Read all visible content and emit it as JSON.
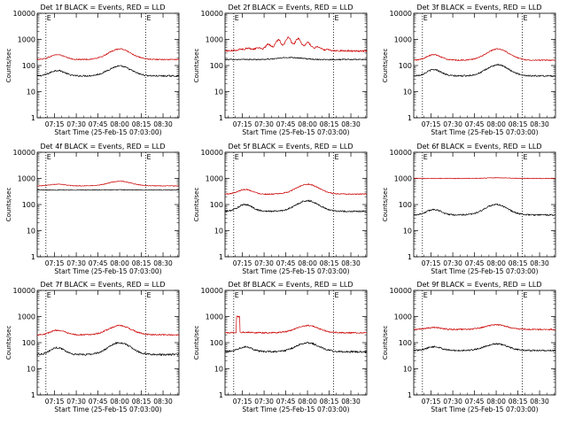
{
  "colors": {
    "events": "#000000",
    "lld": "#cc0000",
    "markers": "#000000"
  },
  "shared": {
    "xlabel": "Start Time (25-Feb-15 07:03:00)",
    "ylabel": "Counts/sec",
    "x_ticks": [
      "07:15",
      "07:30",
      "07:45",
      "08:00",
      "08:15",
      "08:30"
    ],
    "x_tick_values_min": [
      12,
      27,
      42,
      57,
      72,
      87
    ],
    "y_ticks": [
      "1",
      "10",
      "100",
      "1000",
      "10000"
    ],
    "y_tick_values": [
      1,
      10,
      100,
      1000,
      10000
    ],
    "xlim_min": [
      0,
      98
    ],
    "ylim": [
      1,
      10000
    ],
    "marker_label": "E",
    "marker_x_min": [
      6,
      75
    ]
  },
  "chart_data": [
    {
      "type": "line",
      "title": "Det 1f BLACK = Events, RED = LLD",
      "xlabel": "Start Time (25-Feb-15 07:03:00)",
      "ylabel": "Counts/sec",
      "series": [
        {
          "name": "Events",
          "profile": "hump",
          "base": 40,
          "peak": 95,
          "peak_min": 57,
          "early": 65,
          "noise": 0.07
        },
        {
          "name": "LLD",
          "profile": "hump",
          "base": 170,
          "peak": 430,
          "peak_min": 57,
          "early": 260,
          "noise": 0.05
        }
      ]
    },
    {
      "type": "line",
      "title": "Det 2f BLACK = Events, RED = LLD",
      "xlabel": "Start Time (25-Feb-15 07:03:00)",
      "ylabel": "Counts/sec",
      "series": [
        {
          "name": "Events",
          "profile": "flat",
          "base": 170,
          "peak": 230,
          "peak_min": 45,
          "early": 170,
          "noise": 0.05
        },
        {
          "name": "LLD",
          "profile": "bumpy",
          "base": 360,
          "peak": 1200,
          "peak_min": 45,
          "early": 420,
          "noise": 0.08
        }
      ]
    },
    {
      "type": "line",
      "title": "Det 3f BLACK = Events, RED = LLD",
      "xlabel": "Start Time (25-Feb-15 07:03:00)",
      "ylabel": "Counts/sec",
      "series": [
        {
          "name": "Events",
          "profile": "hump",
          "base": 40,
          "peak": 105,
          "peak_min": 58,
          "early": 70,
          "noise": 0.07
        },
        {
          "name": "LLD",
          "profile": "hump",
          "base": 160,
          "peak": 430,
          "peak_min": 58,
          "early": 260,
          "noise": 0.05
        }
      ]
    },
    {
      "type": "line",
      "title": "Det 4f BLACK = Events, RED = LLD",
      "xlabel": "Start Time (25-Feb-15 07:03:00)",
      "ylabel": "Counts/sec",
      "series": [
        {
          "name": "Events",
          "profile": "flat",
          "base": 360,
          "peak": 370,
          "peak_min": 57,
          "early": 360,
          "noise": 0.03
        },
        {
          "name": "LLD",
          "profile": "hump",
          "base": 520,
          "peak": 780,
          "peak_min": 57,
          "early": 600,
          "noise": 0.03
        }
      ]
    },
    {
      "type": "line",
      "title": "Det 5f BLACK = Events, RED = LLD",
      "xlabel": "Start Time (25-Feb-15 07:03:00)",
      "ylabel": "Counts/sec",
      "series": [
        {
          "name": "Events",
          "profile": "hump",
          "base": 55,
          "peak": 140,
          "peak_min": 57,
          "early": 100,
          "noise": 0.07
        },
        {
          "name": "LLD",
          "profile": "hump",
          "base": 250,
          "peak": 600,
          "peak_min": 57,
          "early": 380,
          "noise": 0.05
        }
      ]
    },
    {
      "type": "line",
      "title": "Det 6f BLACK = Events, RED = LLD",
      "xlabel": "Start Time (25-Feb-15 07:03:00)",
      "ylabel": "Counts/sec",
      "series": [
        {
          "name": "Events",
          "profile": "hump",
          "base": 40,
          "peak": 100,
          "peak_min": 57,
          "early": 65,
          "noise": 0.07
        },
        {
          "name": "LLD",
          "profile": "flat",
          "base": 1000,
          "peak": 1100,
          "peak_min": 57,
          "early": 1000,
          "noise": 0.03
        }
      ]
    },
    {
      "type": "line",
      "title": "Det 7f BLACK = Events, RED = LLD",
      "xlabel": "Start Time (25-Feb-15 07:03:00)",
      "ylabel": "Counts/sec",
      "series": [
        {
          "name": "Events",
          "profile": "hump",
          "base": 35,
          "peak": 100,
          "peak_min": 57,
          "early": 65,
          "noise": 0.08
        },
        {
          "name": "LLD",
          "profile": "hump",
          "base": 200,
          "peak": 450,
          "peak_min": 57,
          "early": 300,
          "noise": 0.06
        }
      ]
    },
    {
      "type": "line",
      "title": "Det 8f BLACK = Events, RED = LLD",
      "xlabel": "Start Time (25-Feb-15 07:03:00)",
      "ylabel": "Counts/sec",
      "series": [
        {
          "name": "Events",
          "profile": "hump",
          "base": 45,
          "peak": 100,
          "peak_min": 57,
          "early": 70,
          "noise": 0.08
        },
        {
          "name": "LLD",
          "profile": "spike",
          "base": 240,
          "peak": 450,
          "peak_min": 57,
          "early": 250,
          "noise": 0.06,
          "spike_min": 9,
          "spike_val": 1000
        }
      ]
    },
    {
      "type": "line",
      "title": "Det 9f BLACK = Events, RED = LLD",
      "xlabel": "Start Time (25-Feb-15 07:03:00)",
      "ylabel": "Counts/sec",
      "series": [
        {
          "name": "Events",
          "profile": "hump",
          "base": 50,
          "peak": 90,
          "peak_min": 57,
          "early": 70,
          "noise": 0.07
        },
        {
          "name": "LLD",
          "profile": "hump",
          "base": 320,
          "peak": 480,
          "peak_min": 57,
          "early": 380,
          "noise": 0.06
        }
      ]
    }
  ]
}
